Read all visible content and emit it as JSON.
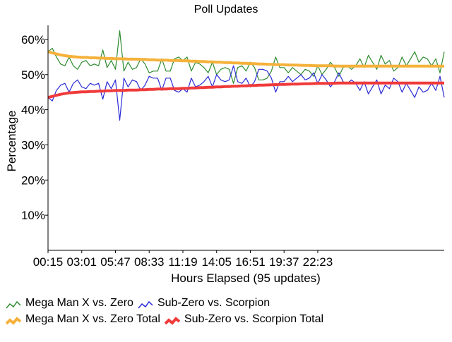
{
  "chart_data": {
    "type": "line",
    "title": "Poll Updates",
    "xlabel": "Hours Elapsed (95 updates)",
    "ylabel": "Percentage",
    "x_tick_labels": [
      "00:15",
      "03:01",
      "05:47",
      "08:33",
      "11:19",
      "14:05",
      "16:51",
      "19:37",
      "22:23"
    ],
    "y_tick_labels": [
      "10%",
      "20%",
      "30%",
      "40%",
      "50%",
      "60%"
    ],
    "ylim": [
      0,
      64
    ],
    "grid": false,
    "legend_position": "bottom-left",
    "series": [
      {
        "name": "Mega Man X vs. Zero",
        "color": "#2e8b2e",
        "values": [
          56.5,
          57.5,
          55,
          53,
          52.5,
          55,
          52.5,
          51.5,
          53.5,
          54,
          52.5,
          53,
          52.5,
          57,
          52,
          54,
          51.5,
          62.5,
          51,
          53.5,
          51.5,
          52,
          54.5,
          53,
          50.5,
          51,
          51,
          54.5,
          51,
          51,
          54.5,
          55,
          54,
          55,
          51,
          53.5,
          53,
          52,
          50.5,
          53.5,
          50,
          51.5,
          52,
          51.5,
          47.5,
          52,
          52.5,
          51,
          53.5,
          52,
          48.5,
          48.5,
          49,
          51,
          55,
          52,
          52,
          50.5,
          52,
          51,
          50,
          51.5,
          51,
          49.5,
          52.5,
          50,
          51.5,
          53.5,
          52,
          49.5,
          52,
          52.5,
          51.5,
          52.5,
          54.5,
          52,
          55.5,
          53.5,
          51.5,
          55.5,
          53,
          54,
          51,
          52,
          55,
          52.5,
          54.5,
          56.5,
          53.5,
          55,
          54.5,
          52.5,
          54.5,
          50.5,
          56.5
        ]
      },
      {
        "name": "Sub-Zero vs. Scorpion",
        "color": "#2b2bd6",
        "values": [
          43.5,
          42.5,
          45.5,
          47,
          47.5,
          45,
          47.5,
          48.5,
          46.5,
          46,
          47.5,
          47,
          47.5,
          43,
          48,
          46,
          48.5,
          37,
          49,
          46.5,
          48.5,
          48,
          45.5,
          47,
          49.5,
          49,
          49,
          45.5,
          49,
          49,
          45.5,
          45,
          46,
          45,
          49,
          46.5,
          47,
          48,
          49.5,
          46.5,
          50,
          48.5,
          48,
          48.5,
          52.5,
          48,
          47.5,
          49,
          46.5,
          48,
          51.5,
          51.5,
          51,
          49,
          45,
          48,
          48,
          49.5,
          48,
          49,
          50,
          48.5,
          49,
          50.5,
          47.5,
          50,
          48.5,
          46.5,
          48,
          50.5,
          48,
          47.5,
          48.5,
          47.5,
          45.5,
          48,
          44.5,
          46.5,
          48.5,
          44.5,
          47,
          46,
          49,
          48,
          45,
          47.5,
          45.5,
          43.5,
          46.5,
          45,
          45.5,
          47.5,
          45.5,
          49.5,
          43.5
        ]
      },
      {
        "name": "Mega Man X vs. Zero Total",
        "color": "#f5b13a",
        "values": [
          56.5,
          56.2,
          55.9,
          55.6,
          55.4,
          55.2,
          55.1,
          55,
          54.9,
          54.9,
          54.8,
          54.8,
          54.7,
          54.7,
          54.6,
          54.6,
          54.5,
          54.5,
          54.5,
          54.4,
          54.4,
          54.4,
          54.3,
          54.3,
          54.2,
          54.2,
          54.1,
          54.1,
          54.1,
          54,
          54,
          54,
          53.9,
          53.9,
          53.8,
          53.8,
          53.7,
          53.7,
          53.6,
          53.6,
          53.5,
          53.5,
          53.4,
          53.4,
          53.3,
          53.3,
          53.2,
          53.2,
          53.1,
          53.1,
          53,
          53,
          52.95,
          52.9,
          52.85,
          52.8,
          52.8,
          52.75,
          52.7,
          52.7,
          52.65,
          52.6,
          52.6,
          52.55,
          52.5,
          52.5,
          52.5,
          52.5,
          52.45,
          52.4,
          52.4,
          52.4,
          52.4,
          52.4,
          52.4,
          52.4,
          52.4,
          52.4,
          52.4,
          52.4,
          52.4,
          52.4,
          52.4,
          52.4,
          52.4,
          52.4,
          52.4,
          52.4,
          52.4,
          52.4,
          52.4,
          52.4,
          52.4,
          52.4,
          52.4
        ]
      },
      {
        "name": "Sub-Zero vs. Scorpion Total",
        "color": "#f03a3a",
        "values": [
          43.5,
          43.8,
          44.1,
          44.4,
          44.6,
          44.8,
          44.9,
          45,
          45.1,
          45.1,
          45.2,
          45.2,
          45.3,
          45.3,
          45.4,
          45.4,
          45.5,
          45.5,
          45.5,
          45.6,
          45.6,
          45.6,
          45.7,
          45.7,
          45.8,
          45.8,
          45.9,
          45.9,
          45.9,
          46,
          46,
          46,
          46.1,
          46.1,
          46.2,
          46.2,
          46.3,
          46.3,
          46.4,
          46.4,
          46.5,
          46.5,
          46.6,
          46.6,
          46.7,
          46.7,
          46.8,
          46.8,
          46.9,
          46.9,
          47,
          47,
          47.05,
          47.1,
          47.15,
          47.2,
          47.2,
          47.25,
          47.3,
          47.3,
          47.35,
          47.4,
          47.4,
          47.45,
          47.5,
          47.5,
          47.5,
          47.5,
          47.55,
          47.6,
          47.6,
          47.6,
          47.6,
          47.6,
          47.6,
          47.6,
          47.6,
          47.6,
          47.6,
          47.6,
          47.6,
          47.6,
          47.6,
          47.6,
          47.6,
          47.6,
          47.6,
          47.6,
          47.6,
          47.6,
          47.6,
          47.6,
          47.6,
          47.6,
          47.6
        ]
      }
    ]
  }
}
